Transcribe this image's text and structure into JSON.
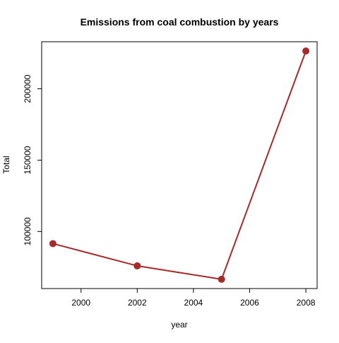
{
  "chart_data": {
    "type": "line",
    "title": "Emissions from coal combustion by years",
    "xlabel": "year",
    "ylabel": "Total",
    "x": [
      1999,
      2002,
      2005,
      2008
    ],
    "y": [
      91500,
      75900,
      66500,
      226500
    ],
    "xlim": [
      1998.6,
      2008.4
    ],
    "ylim": [
      60000,
      233000
    ],
    "x_ticks": [
      2000,
      2002,
      2004,
      2006,
      2008
    ],
    "x_tick_labels": [
      "2000",
      "2002",
      "2004",
      "2006",
      "2008"
    ],
    "y_ticks": [
      100000,
      150000,
      200000
    ],
    "y_tick_labels": [
      "100000",
      "150000",
      "200000"
    ],
    "grid": false,
    "colors": {
      "series": "#a52a2a",
      "axis": "#000000"
    }
  }
}
